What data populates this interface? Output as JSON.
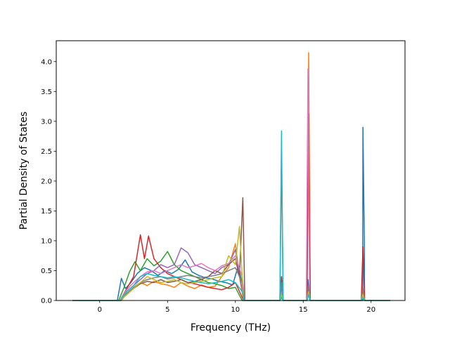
{
  "chart_data": {
    "type": "line",
    "title": "",
    "xlabel": "Frequency (THz)",
    "ylabel": "Partial Density of States",
    "xlim": [
      -3.2,
      22.5
    ],
    "ylim": [
      0,
      4.35
    ],
    "xticks": [
      0,
      5,
      10,
      15,
      20
    ],
    "yticks": [
      0.0,
      0.5,
      1.0,
      1.5,
      2.0,
      2.5,
      3.0,
      3.5,
      4.0
    ],
    "x_range": [
      -2.0,
      21.4
    ],
    "grid": false,
    "legend": "none",
    "colors": [
      "#1f77b4",
      "#ff7f0e",
      "#2ca02c",
      "#d62728",
      "#9467bd",
      "#8c564b",
      "#e377c2",
      "#7f7f7f",
      "#bcbd22",
      "#17becf"
    ],
    "series": [
      {
        "color": "#1f77b4",
        "band": [
          [
            1.3,
            0
          ],
          [
            1.6,
            0.37
          ],
          [
            1.9,
            0.2
          ],
          [
            2.3,
            0.3
          ],
          [
            2.8,
            0.46
          ],
          [
            3.3,
            0.55
          ],
          [
            3.8,
            0.5
          ],
          [
            4.3,
            0.42
          ],
          [
            4.8,
            0.5
          ],
          [
            5.3,
            0.45
          ],
          [
            5.8,
            0.52
          ],
          [
            6.3,
            0.68
          ],
          [
            6.8,
            0.48
          ],
          [
            7.3,
            0.42
          ],
          [
            7.8,
            0.38
          ],
          [
            8.3,
            0.36
          ],
          [
            8.8,
            0.32
          ],
          [
            9.3,
            0.3
          ],
          [
            9.8,
            0.26
          ],
          [
            10.2,
            0.57
          ],
          [
            10.5,
            0.3
          ],
          [
            10.65,
            0
          ]
        ],
        "peaks": [
          [
            13.4,
            0.1
          ],
          [
            15.35,
            0.35
          ],
          [
            19.4,
            2.9
          ],
          [
            19.5,
            1.05
          ]
        ]
      },
      {
        "color": "#ff7f0e",
        "band": [
          [
            1.6,
            0
          ],
          [
            2.0,
            0.12
          ],
          [
            2.5,
            0.22
          ],
          [
            3.0,
            0.3
          ],
          [
            3.5,
            0.25
          ],
          [
            4.0,
            0.32
          ],
          [
            4.5,
            0.28
          ],
          [
            5.0,
            0.26
          ],
          [
            5.5,
            0.22
          ],
          [
            6.0,
            0.3
          ],
          [
            6.5,
            0.24
          ],
          [
            7.0,
            0.2
          ],
          [
            7.5,
            0.26
          ],
          [
            8.0,
            0.22
          ],
          [
            8.5,
            0.24
          ],
          [
            9.0,
            0.4
          ],
          [
            9.5,
            0.55
          ],
          [
            10.0,
            0.95
          ],
          [
            10.3,
            0.4
          ],
          [
            10.6,
            0
          ]
        ],
        "peaks": [
          [
            13.4,
            0.05
          ],
          [
            15.4,
            4.15
          ],
          [
            19.4,
            0.15
          ]
        ]
      },
      {
        "color": "#2ca02c",
        "band": [
          [
            1.4,
            0
          ],
          [
            1.8,
            0.22
          ],
          [
            2.2,
            0.48
          ],
          [
            2.6,
            0.65
          ],
          [
            3.0,
            0.5
          ],
          [
            3.5,
            0.7
          ],
          [
            4.0,
            0.58
          ],
          [
            4.5,
            0.66
          ],
          [
            5.0,
            0.82
          ],
          [
            5.5,
            0.6
          ],
          [
            6.0,
            0.5
          ],
          [
            6.5,
            0.45
          ],
          [
            7.0,
            0.4
          ],
          [
            7.5,
            0.35
          ],
          [
            8.0,
            0.3
          ],
          [
            8.5,
            0.28
          ],
          [
            9.0,
            0.25
          ],
          [
            9.5,
            0.2
          ],
          [
            10.0,
            0.22
          ],
          [
            10.5,
            0
          ]
        ],
        "peaks": [
          [
            13.4,
            0.05
          ],
          [
            15.4,
            0.1
          ],
          [
            19.4,
            0.05
          ]
        ]
      },
      {
        "color": "#d62728",
        "band": [
          [
            1.5,
            0
          ],
          [
            2.0,
            0.2
          ],
          [
            2.5,
            0.4
          ],
          [
            3.0,
            1.1
          ],
          [
            3.3,
            0.7
          ],
          [
            3.6,
            1.08
          ],
          [
            4.0,
            0.7
          ],
          [
            4.5,
            0.55
          ],
          [
            5.0,
            0.45
          ],
          [
            5.5,
            0.4
          ],
          [
            6.0,
            0.35
          ],
          [
            6.5,
            0.3
          ],
          [
            7.0,
            0.28
          ],
          [
            7.5,
            0.25
          ],
          [
            8.0,
            0.22
          ],
          [
            8.5,
            0.2
          ],
          [
            9.0,
            0.18
          ],
          [
            9.5,
            0.22
          ],
          [
            10.0,
            0.3
          ],
          [
            10.6,
            0
          ]
        ],
        "peaks": [
          [
            13.4,
            0.4
          ],
          [
            15.4,
            3.12
          ],
          [
            19.4,
            0.9
          ]
        ]
      },
      {
        "color": "#9467bd",
        "band": [
          [
            1.5,
            0
          ],
          [
            2.0,
            0.15
          ],
          [
            2.5,
            0.25
          ],
          [
            3.0,
            0.35
          ],
          [
            3.5,
            0.45
          ],
          [
            4.0,
            0.5
          ],
          [
            4.5,
            0.6
          ],
          [
            5.0,
            0.55
          ],
          [
            5.5,
            0.6
          ],
          [
            6.0,
            0.88
          ],
          [
            6.5,
            0.8
          ],
          [
            7.0,
            0.6
          ],
          [
            7.5,
            0.55
          ],
          [
            8.0,
            0.5
          ],
          [
            8.5,
            0.45
          ],
          [
            9.0,
            0.55
          ],
          [
            9.5,
            0.6
          ],
          [
            10.0,
            0.85
          ],
          [
            10.4,
            0.3
          ],
          [
            10.65,
            0
          ]
        ],
        "peaks": [
          [
            13.4,
            0.2
          ],
          [
            15.4,
            0.2
          ],
          [
            19.4,
            0.05
          ]
        ]
      },
      {
        "color": "#8c564b",
        "band": [
          [
            1.5,
            0
          ],
          [
            2.0,
            0.1
          ],
          [
            2.5,
            0.2
          ],
          [
            3.0,
            0.28
          ],
          [
            3.5,
            0.32
          ],
          [
            4.0,
            0.3
          ],
          [
            4.5,
            0.35
          ],
          [
            5.0,
            0.3
          ],
          [
            5.5,
            0.32
          ],
          [
            6.0,
            0.35
          ],
          [
            6.5,
            0.3
          ],
          [
            7.0,
            0.32
          ],
          [
            7.5,
            0.35
          ],
          [
            8.0,
            0.4
          ],
          [
            8.5,
            0.5
          ],
          [
            9.0,
            0.45
          ],
          [
            9.5,
            0.6
          ],
          [
            10.0,
            0.7
          ],
          [
            10.3,
            0.4
          ],
          [
            10.55,
            1.72
          ],
          [
            10.7,
            0
          ]
        ],
        "peaks": [
          [
            13.4,
            2.45
          ],
          [
            15.4,
            0.2
          ],
          [
            19.4,
            0.1
          ]
        ]
      },
      {
        "color": "#e377c2",
        "band": [
          [
            1.5,
            0
          ],
          [
            2.0,
            0.18
          ],
          [
            2.5,
            0.3
          ],
          [
            3.0,
            0.4
          ],
          [
            3.5,
            0.48
          ],
          [
            4.0,
            0.5
          ],
          [
            4.5,
            0.45
          ],
          [
            5.0,
            0.5
          ],
          [
            5.5,
            0.55
          ],
          [
            6.0,
            0.6
          ],
          [
            6.5,
            0.55
          ],
          [
            7.0,
            0.58
          ],
          [
            7.5,
            0.62
          ],
          [
            8.0,
            0.55
          ],
          [
            8.5,
            0.5
          ],
          [
            9.0,
            0.58
          ],
          [
            9.5,
            0.62
          ],
          [
            10.0,
            0.75
          ],
          [
            10.5,
            0.4
          ],
          [
            10.7,
            0
          ]
        ],
        "peaks": [
          [
            13.4,
            0.15
          ],
          [
            15.35,
            3.88
          ],
          [
            19.4,
            0.1
          ]
        ]
      },
      {
        "color": "#7f7f7f",
        "band": [
          [
            1.5,
            0
          ],
          [
            2.0,
            0.12
          ],
          [
            2.5,
            0.22
          ],
          [
            3.0,
            0.3
          ],
          [
            3.5,
            0.35
          ],
          [
            4.0,
            0.38
          ],
          [
            4.5,
            0.4
          ],
          [
            5.0,
            0.36
          ],
          [
            5.5,
            0.38
          ],
          [
            6.0,
            0.4
          ],
          [
            6.5,
            0.42
          ],
          [
            7.0,
            0.4
          ],
          [
            7.5,
            0.38
          ],
          [
            8.0,
            0.4
          ],
          [
            8.5,
            0.42
          ],
          [
            9.0,
            0.45
          ],
          [
            9.5,
            0.5
          ],
          [
            10.0,
            0.55
          ],
          [
            10.5,
            0.3
          ],
          [
            10.7,
            0
          ]
        ],
        "peaks": [
          [
            13.4,
            0.3
          ],
          [
            15.4,
            0.25
          ],
          [
            19.4,
            0.2
          ]
        ]
      },
      {
        "color": "#bcbd22",
        "band": [
          [
            1.5,
            0
          ],
          [
            2.0,
            0.1
          ],
          [
            2.5,
            0.2
          ],
          [
            3.0,
            0.3
          ],
          [
            3.5,
            0.4
          ],
          [
            4.0,
            0.35
          ],
          [
            4.5,
            0.3
          ],
          [
            5.0,
            0.32
          ],
          [
            5.5,
            0.35
          ],
          [
            6.0,
            0.3
          ],
          [
            6.5,
            0.28
          ],
          [
            7.0,
            0.3
          ],
          [
            7.5,
            0.32
          ],
          [
            8.0,
            0.35
          ],
          [
            8.5,
            0.38
          ],
          [
            9.0,
            0.4
          ],
          [
            9.5,
            0.75
          ],
          [
            10.0,
            0.6
          ],
          [
            10.3,
            1.24
          ],
          [
            10.6,
            0
          ]
        ],
        "peaks": [
          [
            13.4,
            0.1
          ],
          [
            15.4,
            0.15
          ],
          [
            19.4,
            0.1
          ]
        ]
      },
      {
        "color": "#17becf",
        "band": [
          [
            1.5,
            0
          ],
          [
            2.0,
            0.15
          ],
          [
            2.5,
            0.25
          ],
          [
            3.0,
            0.4
          ],
          [
            3.5,
            0.45
          ],
          [
            4.0,
            0.42
          ],
          [
            4.5,
            0.4
          ],
          [
            5.0,
            0.38
          ],
          [
            5.5,
            0.4
          ],
          [
            6.0,
            0.38
          ],
          [
            6.5,
            0.35
          ],
          [
            7.0,
            0.32
          ],
          [
            7.5,
            0.3
          ],
          [
            8.0,
            0.28
          ],
          [
            8.5,
            0.3
          ],
          [
            9.0,
            0.32
          ],
          [
            9.5,
            0.35
          ],
          [
            10.0,
            0.3
          ],
          [
            10.5,
            0.15
          ],
          [
            10.65,
            0
          ]
        ],
        "peaks": [
          [
            13.4,
            2.84
          ],
          [
            15.4,
            0.1
          ],
          [
            19.4,
            0.05
          ]
        ]
      }
    ]
  }
}
